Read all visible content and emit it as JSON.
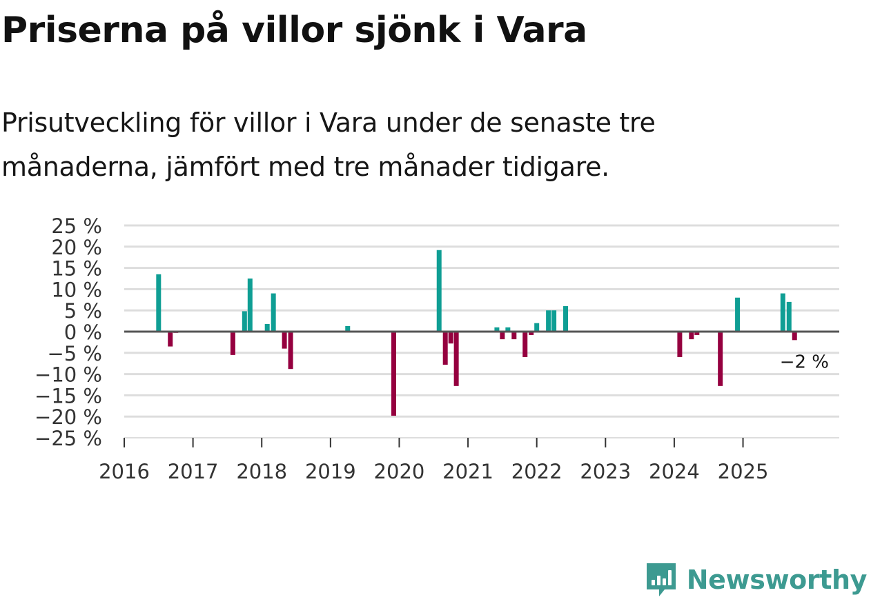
{
  "title": "Priserna på villor sjönk i Vara",
  "subtitle": "Prisutveckling för villor i Vara under de senaste tre månaderna, jämfört med tre månader tidigare.",
  "brand": {
    "name": "Newsworthy",
    "icon": "newsworthy-logo-icon",
    "color": "#3d9a91"
  },
  "colors": {
    "positive": "#0f9e94",
    "negative": "#95003f",
    "zero_line": "#555555",
    "grid": "#dddddd"
  },
  "chart_data": {
    "type": "bar",
    "title": "Priserna på villor sjönk i Vara",
    "xlabel": "",
    "ylabel": "",
    "unit": "%",
    "ylim": [
      -25,
      25
    ],
    "yticks": [
      25,
      20,
      15,
      10,
      5,
      0,
      -5,
      -10,
      -15,
      -20,
      -25
    ],
    "ytick_labels": [
      "25 %",
      "20 %",
      "15 %",
      "10 %",
      "5 %",
      "0 %",
      "−5 %",
      "−10 %",
      "−15 %",
      "−20 %",
      "−25 %"
    ],
    "xlim": [
      2016,
      2026.4
    ],
    "xticks": [
      "2016",
      "2017",
      "2018",
      "2019",
      "2020",
      "2021",
      "2022",
      "2023",
      "2024",
      "2025"
    ],
    "grid": true,
    "last_label": "−2 %",
    "series": [
      {
        "name": "Prisutveckling",
        "points": [
          {
            "x": 2016.5,
            "y": 13.5
          },
          {
            "x": 2016.67,
            "y": -3.5
          },
          {
            "x": 2016.75,
            "y": -0.3
          },
          {
            "x": 2017.58,
            "y": -5.5
          },
          {
            "x": 2017.75,
            "y": 4.8
          },
          {
            "x": 2017.83,
            "y": 12.5
          },
          {
            "x": 2018.08,
            "y": 1.8
          },
          {
            "x": 2018.17,
            "y": 9.0
          },
          {
            "x": 2018.33,
            "y": -4.0
          },
          {
            "x": 2018.42,
            "y": -8.8
          },
          {
            "x": 2019.25,
            "y": 1.3
          },
          {
            "x": 2019.92,
            "y": -19.8
          },
          {
            "x": 2020.58,
            "y": 19.2
          },
          {
            "x": 2020.67,
            "y": -7.8
          },
          {
            "x": 2020.75,
            "y": -2.8
          },
          {
            "x": 2020.83,
            "y": -12.8
          },
          {
            "x": 2021.42,
            "y": 1.0
          },
          {
            "x": 2021.5,
            "y": -1.8
          },
          {
            "x": 2021.58,
            "y": 1.0
          },
          {
            "x": 2021.67,
            "y": -1.8
          },
          {
            "x": 2021.83,
            "y": -6.0
          },
          {
            "x": 2021.92,
            "y": -0.8
          },
          {
            "x": 2022.0,
            "y": 2.0
          },
          {
            "x": 2022.17,
            "y": 5.0
          },
          {
            "x": 2022.25,
            "y": 5.0
          },
          {
            "x": 2022.42,
            "y": 6.0
          },
          {
            "x": 2024.08,
            "y": -6.0
          },
          {
            "x": 2024.25,
            "y": -1.8
          },
          {
            "x": 2024.33,
            "y": -0.8
          },
          {
            "x": 2024.67,
            "y": -12.8
          },
          {
            "x": 2024.92,
            "y": 8.0
          },
          {
            "x": 2025.58,
            "y": 9.0
          },
          {
            "x": 2025.67,
            "y": 7.0
          },
          {
            "x": 2025.75,
            "y": -2.0
          }
        ]
      }
    ]
  }
}
